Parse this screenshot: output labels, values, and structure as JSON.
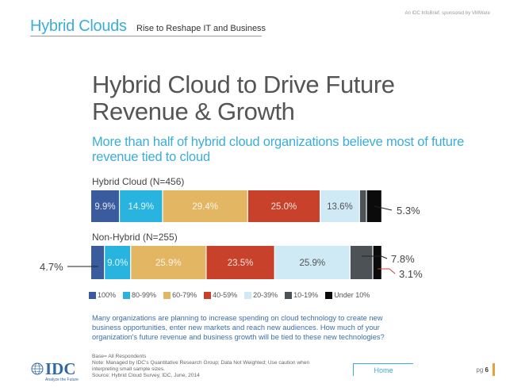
{
  "header": {
    "title": "Hybrid Clouds",
    "subtitle": "Rise to Reshape IT and Business",
    "note": "An IDC InfoBrief, sponsored by VMWare"
  },
  "page_title": "Hybrid Cloud to Drive Future Revenue & Growth",
  "page_subtitle": "More than half of hybrid cloud organizations believe most of future revenue tied to cloud",
  "chart_data": {
    "type": "bar",
    "orientation": "horizontal",
    "stacked": true,
    "categories": [
      "100%",
      "80-99%",
      "60-79%",
      "40-59%",
      "20-39%",
      "10-19%",
      "Under 10%"
    ],
    "colors": [
      "#3a5c9e",
      "#29b4e0",
      "#e3b663",
      "#c8422b",
      "#cfe9f5",
      "#4d5256",
      "#0b0b0b"
    ],
    "legend_position": "bottom",
    "bars": [
      {
        "name": "Hybrid Cloud (N=456)",
        "values": [
          9.9,
          14.9,
          29.4,
          25.0,
          13.6,
          2.4,
          5.3
        ],
        "labels": [
          "9.9%",
          "14.9%",
          "29.4%",
          "25.0%",
          "13.6%",
          "",
          "5.3%"
        ]
      },
      {
        "name": "Non-Hybrid (N=255)",
        "values": [
          4.7,
          9.0,
          25.9,
          23.5,
          25.9,
          7.8,
          3.1
        ],
        "labels": [
          "4.7%",
          "9.0%",
          "25.9%",
          "23.5%",
          "25.9%",
          "7.8%",
          "3.1%"
        ]
      }
    ]
  },
  "footnote": "Many organizations are planning to increase spending on cloud technology to create new business opportunities, enter new markets and reach new audiences. How much of your organization's future revenue and business growth will be tied to these new technologies?",
  "source": {
    "base": "Base= All Respondents",
    "note": "Note: Managed by IDC's Quantitative Research Group; Data Not Weighted; Use caution when interpreting small sample sizes.",
    "source": "Source: Hybrid Cloud Survey, IDC, June, 2014"
  },
  "logo": {
    "text": "IDC",
    "tagline": "Analyze the Future"
  },
  "nav": {
    "home_label": "Home",
    "page_prefix": "pg",
    "page_number": "6"
  }
}
